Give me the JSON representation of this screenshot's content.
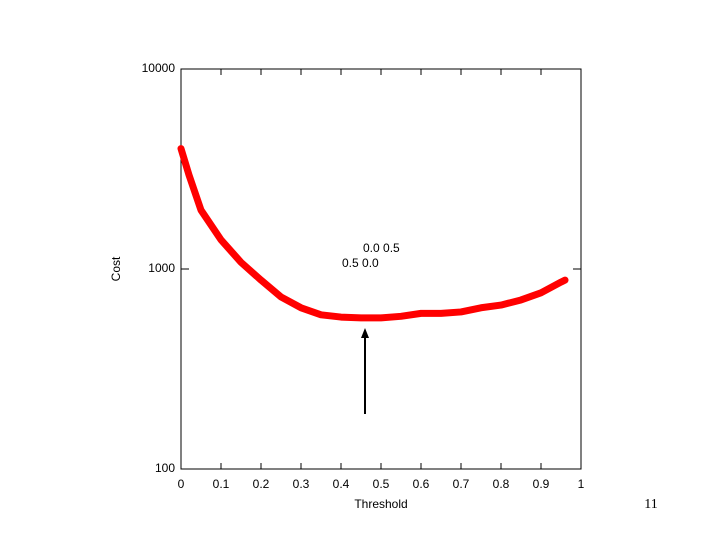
{
  "chart_data": {
    "type": "line",
    "x_label": "Threshold",
    "y_label": "Cost",
    "x": [
      0,
      0.02,
      0.05,
      0.1,
      0.15,
      0.2,
      0.25,
      0.3,
      0.35,
      0.4,
      0.45,
      0.5,
      0.55,
      0.6,
      0.65,
      0.7,
      0.75,
      0.8,
      0.85,
      0.9,
      0.95,
      0.96
    ],
    "series": [
      {
        "color": "#ff0000",
        "values": [
          4000,
          2950,
          1970,
          1400,
          1080,
          880,
          725,
          640,
          590,
          575,
          570,
          570,
          580,
          600,
          600,
          610,
          640,
          660,
          700,
          760,
          860,
          880
        ]
      }
    ],
    "xlim": [
      0,
      1
    ],
    "xticks": [
      0,
      0.1,
      0.2,
      0.3,
      0.4,
      0.5,
      0.6,
      0.7,
      0.8,
      0.9,
      1
    ],
    "ylim": [
      100,
      10000
    ],
    "yticks": [
      100,
      1000,
      10000
    ],
    "log_y": true,
    "annotations": [
      "0.0 0.5",
      "0.5 0.0"
    ]
  },
  "page_number": "11"
}
